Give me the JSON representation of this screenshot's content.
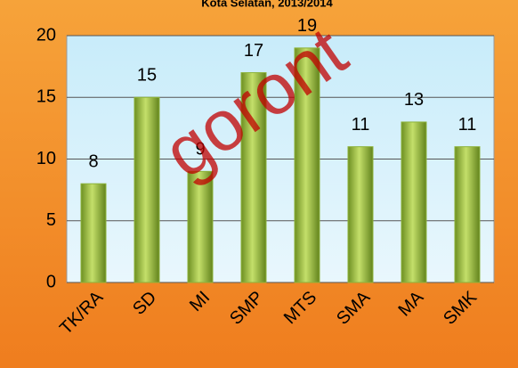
{
  "chart_data": {
    "type": "bar",
    "title": "Kota Selatan, 2013/2014",
    "categories": [
      "TK/RA",
      "SD",
      "MI",
      "SMP",
      "MTS",
      "SMA",
      "MA",
      "SMK"
    ],
    "values": [
      8,
      15,
      9,
      17,
      19,
      11,
      13,
      11
    ],
    "color": "#8db33a",
    "ylim": [
      0,
      20
    ],
    "yticks": [
      0,
      5,
      10,
      15,
      20
    ],
    "grid": true,
    "watermark": "goront"
  }
}
